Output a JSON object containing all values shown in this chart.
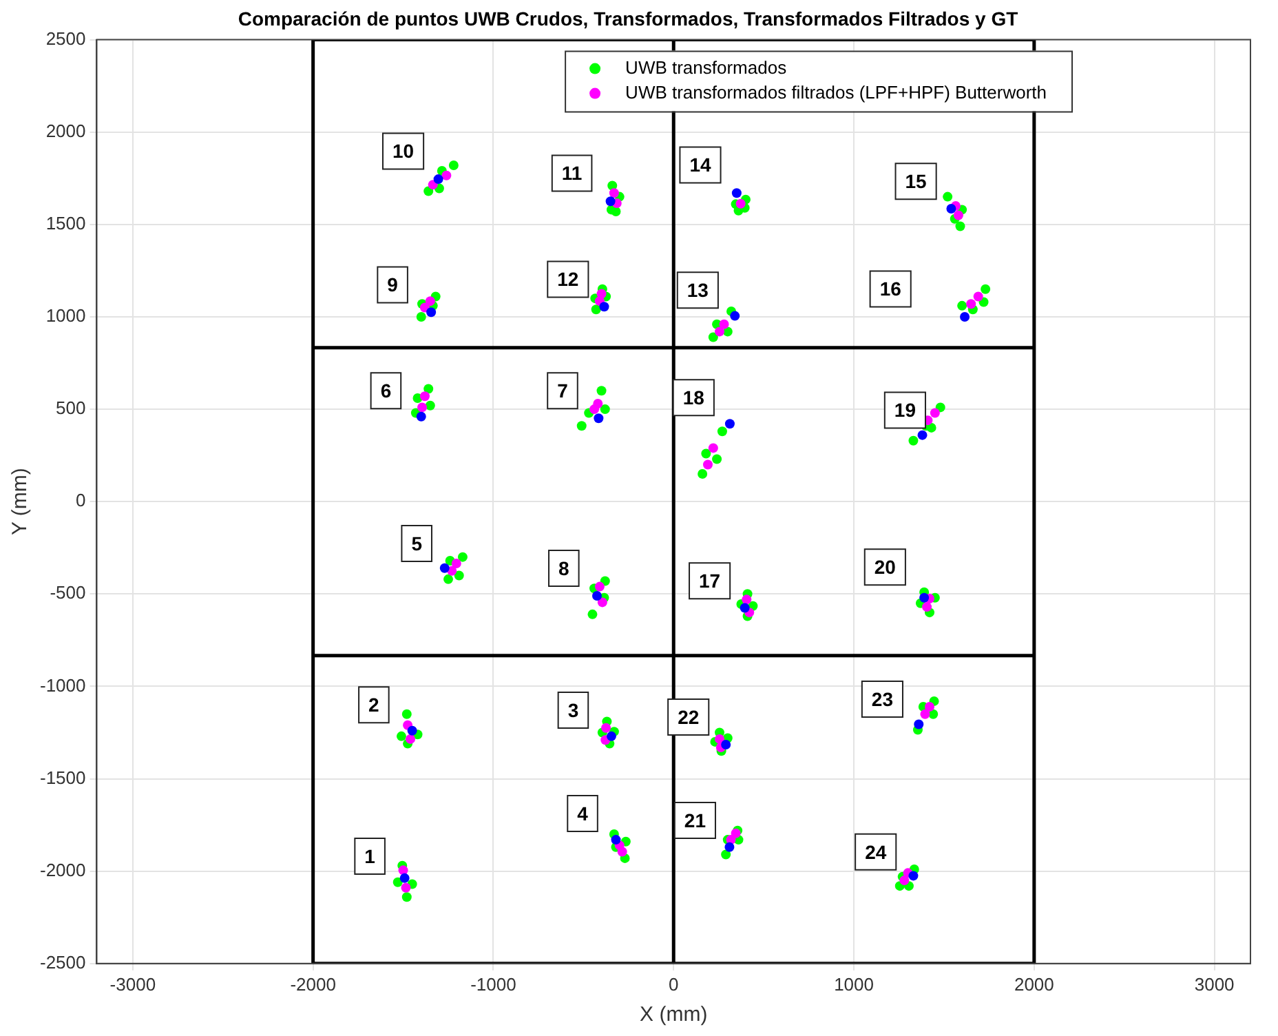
{
  "chart_data": {
    "type": "scatter",
    "title": "Comparación de puntos UWB Crudos, Transformados, Transformados Filtrados y GT",
    "xlabel": "X (mm)",
    "ylabel": "Y (mm)",
    "xlim": [
      -3200,
      3200
    ],
    "ylim": [
      -2500,
      2500
    ],
    "xticks": [
      -3000,
      -2000,
      -1000,
      0,
      1000,
      2000,
      3000
    ],
    "yticks": [
      -2500,
      -2000,
      -1500,
      -1000,
      -500,
      0,
      500,
      1000,
      1500,
      2000,
      2500
    ],
    "grid": true,
    "legend": "top right",
    "marker": "circle",
    "ref_lines": [
      {
        "axis": "x",
        "value": -2000,
        "color": "#000000"
      },
      {
        "axis": "x",
        "value": 0,
        "color": "#000000"
      },
      {
        "axis": "x",
        "value": 2000,
        "color": "#000000"
      }
    ],
    "series": [
      {
        "type": "line",
        "color": "#000000",
        "marker": "none",
        "x": [
          -2000,
          2000
        ],
        "values": [
          833,
          833
        ]
      },
      {
        "type": "line",
        "color": "#000000",
        "marker": "none",
        "x": [
          -2000,
          2000
        ],
        "values": [
          -833,
          -833
        ]
      },
      {
        "type": "line",
        "color": "#000000",
        "marker": "none",
        "x": [
          -2000,
          2000
        ],
        "values": [
          2500,
          2500
        ]
      },
      {
        "type": "line",
        "color": "#000000",
        "marker": "none",
        "x": [
          -2000,
          2000
        ],
        "values": [
          -2500,
          -2500
        ]
      },
      {
        "name": "UWB transformados",
        "color": "#00ff00",
        "x": [
          -1505,
          -1480,
          -1530,
          -1450,
          -1480,
          -1475,
          -1510,
          -1420,
          -370,
          -355,
          -395,
          -330,
          -330,
          -270,
          -320,
          -265,
          290,
          355,
          300,
          360,
          255,
          265,
          230,
          300,
          1445,
          1355,
          1440,
          1385,
          1255,
          1335,
          1270,
          1305,
          -1250,
          -1170,
          -1240,
          -1190,
          -450,
          -380,
          -440,
          -385,
          410,
          410,
          375,
          440,
          1390,
          1420,
          1370,
          1450,
          -1430,
          -1360,
          -1420,
          -1350,
          -510,
          -400,
          -470,
          -380,
          160,
          270,
          180,
          240,
          1330,
          1480,
          1400,
          1430,
          -1400,
          -1320,
          -1395,
          -1335,
          -430,
          -395,
          -435,
          -375,
          220,
          320,
          240,
          300,
          1600,
          1730,
          1660,
          1720,
          -1360,
          -1220,
          -1300,
          -1285,
          -340,
          -320,
          -300,
          -345,
          360,
          400,
          395,
          345,
          1520,
          1590,
          1600,
          1560
        ],
        "values": [
          -1970,
          -2140,
          -2060,
          -2070,
          -1150,
          -1310,
          -1270,
          -1260,
          -1190,
          -1310,
          -1250,
          -1245,
          -1800,
          -1930,
          -1870,
          -1840,
          -1910,
          -1780,
          -1830,
          -1830,
          -1250,
          -1350,
          -1300,
          -1280,
          -1080,
          -1235,
          -1150,
          -1110,
          -2080,
          -1990,
          -2030,
          -2080,
          -420,
          -300,
          -320,
          -400,
          -610,
          -430,
          -470,
          -520,
          -500,
          -620,
          -555,
          -565,
          -490,
          -600,
          -550,
          -520,
          480,
          610,
          560,
          520,
          410,
          600,
          480,
          500,
          150,
          380,
          260,
          230,
          330,
          510,
          410,
          400,
          1000,
          1110,
          1070,
          1060,
          1040,
          1150,
          1100,
          1110,
          890,
          1030,
          960,
          920,
          1060,
          1150,
          1040,
          1080,
          1680,
          1820,
          1695,
          1790,
          1710,
          1570,
          1650,
          1580,
          1575,
          1635,
          1590,
          1610,
          1650,
          1490,
          1580,
          1530
        ]
      },
      {
        "name": "UWB transformados filtrados (LPF+HPF) Butterworth",
        "color": "#ff00ff",
        "x": [
          -1500,
          -1485,
          -1475,
          -1460,
          -375,
          -378,
          -300,
          -285,
          318,
          345,
          255,
          262,
          1395,
          1420,
          1280,
          1300,
          -1230,
          -1205,
          -410,
          -395,
          405,
          420,
          1420,
          1405,
          -1395,
          -1380,
          -440,
          -420,
          190,
          220,
          1410,
          1450,
          -1380,
          -1350,
          -410,
          -400,
          255,
          280,
          1650,
          1690,
          -1335,
          -1260,
          -330,
          -315,
          372,
          1565,
          1580
        ],
        "values": [
          -1995,
          -2090,
          -1210,
          -1285,
          -1225,
          -1290,
          -1860,
          -1895,
          -1830,
          -1795,
          -1285,
          -1330,
          -1150,
          -1110,
          -2050,
          -2010,
          -375,
          -335,
          -460,
          -545,
          -530,
          -600,
          -525,
          -570,
          510,
          570,
          500,
          530,
          200,
          290,
          440,
          480,
          1050,
          1085,
          1085,
          1125,
          920,
          960,
          1070,
          1110,
          1715,
          1765,
          1670,
          1615,
          1612,
          1600,
          1550
        ]
      },
      {
        "color": "#0000ff",
        "x": [
          -1492,
          -1450,
          -345,
          -320,
          310,
          290,
          1360,
          1330,
          -1270,
          -425,
          395,
          1390,
          -1400,
          -416,
          312,
          1380,
          -1345,
          -385,
          340,
          1615,
          -1305,
          -350,
          350,
          1540
        ],
        "values": [
          -2038,
          -1240,
          -1270,
          -1830,
          -1870,
          -1315,
          -1205,
          -2025,
          -360,
          -510,
          -575,
          -520,
          460,
          451,
          421,
          360,
          1025,
          1055,
          1005,
          1000,
          1745,
          1625,
          1670,
          1585
        ]
      }
    ],
    "annotations": [
      {
        "text": "1",
        "x": -1685,
        "y": -1919
      },
      {
        "text": "2",
        "x": -1663,
        "y": -1100
      },
      {
        "text": "3",
        "x": -557,
        "y": -1129
      },
      {
        "text": "4",
        "x": -505,
        "y": -1688
      },
      {
        "text": "5",
        "x": -1425,
        "y": -227
      },
      {
        "text": "6",
        "x": -1596,
        "y": 600
      },
      {
        "text": "7",
        "x": -616,
        "y": 600
      },
      {
        "text": "8",
        "x": -609,
        "y": -361
      },
      {
        "text": "9",
        "x": -1559,
        "y": 1173
      },
      {
        "text": "10",
        "x": -1500,
        "y": 1896
      },
      {
        "text": "11",
        "x": -564,
        "y": 1777
      },
      {
        "text": "12",
        "x": -586,
        "y": 1203
      },
      {
        "text": "13",
        "x": 134,
        "y": 1144
      },
      {
        "text": "14",
        "x": 148,
        "y": 1822
      },
      {
        "text": "15",
        "x": 1344,
        "y": 1733
      },
      {
        "text": "16",
        "x": 1203,
        "y": 1151
      },
      {
        "text": "17",
        "x": 200,
        "y": -429
      },
      {
        "text": "18",
        "x": 111,
        "y": 563
      },
      {
        "text": "19",
        "x": 1284,
        "y": 495
      },
      {
        "text": "20",
        "x": 1173,
        "y": -354
      },
      {
        "text": "21",
        "x": 119,
        "y": -1725
      },
      {
        "text": "22",
        "x": 82,
        "y": -1166
      },
      {
        "text": "23",
        "x": 1158,
        "y": -1069
      },
      {
        "text": "24",
        "x": 1121,
        "y": -1896
      }
    ]
  }
}
